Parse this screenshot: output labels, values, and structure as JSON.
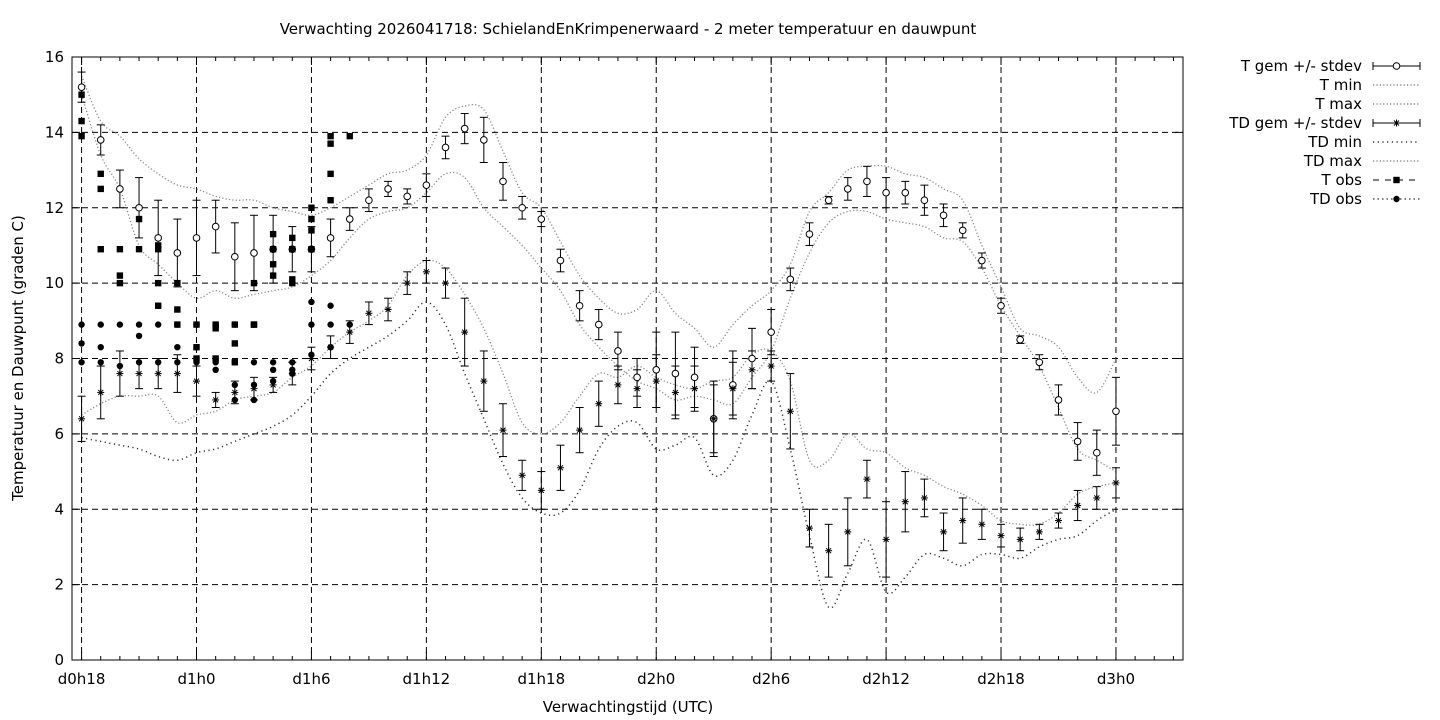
{
  "chart_data": {
    "type": "line",
    "title": "Verwachting 2026041718: SchielandEnKrimpenerwaard - 2 meter temperatuur en dauwpunt",
    "xlabel": "Verwachtingstijd (UTC)",
    "ylabel": "Temperatuur en Dauwpunt (graden C)",
    "xlim": [
      17.5,
      75.5
    ],
    "ylim": [
      0,
      16
    ],
    "x_ticks": [
      {
        "x": 18,
        "label": "d0h18"
      },
      {
        "x": 24,
        "label": "d1h0"
      },
      {
        "x": 30,
        "label": "d1h6"
      },
      {
        "x": 36,
        "label": "d1h12"
      },
      {
        "x": 42,
        "label": "d1h18"
      },
      {
        "x": 48,
        "label": "d2h0"
      },
      {
        "x": 54,
        "label": "d2h6"
      },
      {
        "x": 60,
        "label": "d2h12"
      },
      {
        "x": 66,
        "label": "d2h18"
      },
      {
        "x": 72,
        "label": "d3h0"
      }
    ],
    "y_ticks": [
      0,
      2,
      4,
      6,
      8,
      10,
      12,
      14,
      16
    ],
    "grid": true,
    "legend_position": "outside-right",
    "legend": [
      "T gem +/- stdev",
      "T min",
      "T max",
      "TD gem +/- stdev",
      "TD min",
      "TD max",
      "T obs",
      "TD obs"
    ],
    "x": [
      18,
      19,
      20,
      21,
      22,
      23,
      24,
      25,
      26,
      27,
      28,
      29,
      30,
      31,
      32,
      33,
      34,
      35,
      36,
      37,
      38,
      39,
      40,
      41,
      42,
      43,
      44,
      45,
      46,
      47,
      48,
      49,
      50,
      51,
      52,
      53,
      54,
      55,
      56,
      57,
      58,
      59,
      60,
      61,
      62,
      63,
      64,
      65,
      66,
      67,
      68,
      69,
      70,
      71,
      72
    ],
    "series": [
      {
        "name": "T gem +/- stdev",
        "mean": [
          15.2,
          13.8,
          12.5,
          12.0,
          11.2,
          10.8,
          11.2,
          11.5,
          10.7,
          10.8,
          10.9,
          10.9,
          10.9,
          11.2,
          11.7,
          12.2,
          12.5,
          12.3,
          12.6,
          13.6,
          14.1,
          13.8,
          12.7,
          12.0,
          11.7,
          10.6,
          9.4,
          8.9,
          8.2,
          7.5,
          7.7,
          7.6,
          7.5,
          6.4,
          7.3,
          8.0,
          8.7,
          10.1,
          11.3,
          12.2,
          12.5,
          12.7,
          12.4,
          12.4,
          12.2,
          11.8,
          11.4,
          10.6,
          9.4,
          8.5,
          7.9,
          6.9,
          5.8,
          5.5,
          6.6
        ],
        "stdev": [
          0.4,
          0.4,
          0.5,
          0.8,
          1.0,
          0.9,
          1.0,
          0.7,
          0.9,
          1.0,
          0.9,
          0.6,
          0.6,
          0.5,
          0.3,
          0.3,
          0.2,
          0.2,
          0.3,
          0.3,
          0.4,
          0.6,
          0.5,
          0.3,
          0.2,
          0.3,
          0.4,
          0.4,
          0.5,
          0.5,
          1.0,
          1.1,
          0.8,
          0.9,
          0.9,
          0.8,
          0.6,
          0.3,
          0.3,
          0.1,
          0.3,
          0.4,
          0.4,
          0.3,
          0.4,
          0.3,
          0.2,
          0.2,
          0.2,
          0.1,
          0.2,
          0.4,
          0.5,
          0.6,
          0.9
        ]
      },
      {
        "name": "T min",
        "values": [
          15.0,
          13.4,
          12.5,
          11.0,
          10.5,
          10.0,
          9.6,
          9.8,
          9.6,
          9.7,
          9.8,
          9.9,
          10.2,
          10.6,
          11.2,
          11.7,
          11.9,
          12.0,
          12.4,
          12.9,
          12.8,
          12.0,
          11.5,
          11.0,
          10.4,
          9.8,
          8.9,
          8.3,
          7.8,
          7.4,
          7.2,
          6.9,
          7.0,
          6.9,
          6.8,
          7.5,
          8.2,
          9.6,
          10.8,
          11.6,
          11.9,
          11.9,
          11.7,
          11.6,
          11.5,
          11.2,
          11.1,
          10.4,
          9.4,
          8.6,
          7.8,
          6.7,
          5.6,
          5.3,
          5.0
        ]
      },
      {
        "name": "T max",
        "values": [
          15.5,
          14.3,
          13.9,
          13.3,
          12.9,
          12.6,
          12.5,
          12.3,
          12.2,
          12.2,
          12.0,
          11.9,
          11.8,
          12.0,
          12.3,
          12.6,
          12.9,
          13.0,
          13.4,
          14.4,
          14.7,
          14.6,
          13.5,
          12.4,
          12.0,
          11.1,
          10.2,
          9.6,
          9.2,
          9.3,
          9.8,
          9.2,
          8.8,
          8.3,
          8.9,
          9.4,
          9.8,
          10.5,
          11.9,
          12.4,
          13.0,
          13.1,
          13.1,
          12.9,
          12.8,
          12.5,
          12.2,
          11.0,
          9.9,
          8.8,
          8.6,
          8.3,
          7.5,
          7.1,
          8.0
        ]
      },
      {
        "name": "TD gem +/- stdev",
        "mean": [
          6.4,
          7.1,
          7.6,
          7.6,
          7.6,
          7.6,
          7.4,
          6.9,
          7.1,
          7.2,
          7.3,
          7.6,
          8.0,
          8.3,
          8.7,
          9.2,
          9.3,
          10.0,
          10.3,
          10.0,
          8.7,
          7.4,
          6.1,
          4.9,
          4.5,
          5.1,
          6.1,
          6.8,
          7.3,
          7.2,
          7.4,
          7.1,
          7.2,
          6.4,
          7.2,
          7.7,
          7.8,
          6.6,
          3.5,
          2.9,
          3.4,
          4.8,
          3.2,
          4.2,
          4.3,
          3.4,
          3.7,
          3.6,
          3.3,
          3.2,
          3.4,
          3.7,
          4.1,
          4.3,
          4.7
        ],
        "stdev": [
          0.6,
          0.7,
          0.6,
          0.4,
          0.4,
          0.5,
          0.4,
          0.2,
          0.3,
          0.3,
          0.2,
          0.3,
          0.3,
          0.3,
          0.3,
          0.3,
          0.3,
          0.3,
          0.3,
          0.4,
          0.9,
          0.8,
          0.7,
          0.4,
          0.5,
          0.6,
          0.6,
          0.6,
          0.5,
          0.5,
          0.7,
          0.7,
          0.6,
          1.0,
          0.7,
          0.5,
          0.4,
          1.0,
          0.5,
          0.7,
          0.9,
          0.5,
          1.0,
          0.8,
          0.5,
          0.5,
          0.6,
          0.4,
          0.3,
          0.3,
          0.2,
          0.2,
          0.4,
          0.3,
          0.4
        ]
      },
      {
        "name": "TD min",
        "values": [
          5.9,
          5.8,
          5.7,
          5.6,
          5.4,
          5.3,
          5.5,
          5.6,
          5.8,
          6.0,
          6.2,
          6.5,
          7.0,
          7.6,
          8.0,
          8.3,
          8.6,
          9.0,
          9.5,
          8.9,
          7.6,
          6.4,
          5.2,
          4.3,
          3.9,
          3.9,
          4.5,
          5.6,
          6.2,
          6.3,
          5.6,
          5.7,
          5.9,
          4.9,
          5.3,
          6.5,
          7.4,
          5.6,
          3.3,
          1.4,
          2.3,
          3.2,
          1.8,
          2.2,
          2.8,
          2.7,
          2.5,
          2.8,
          2.8,
          2.7,
          3.0,
          3.2,
          3.3,
          3.7,
          4.0
        ]
      },
      {
        "name": "TD max",
        "values": [
          6.5,
          6.8,
          7.0,
          7.0,
          7.0,
          6.3,
          6.5,
          6.6,
          6.9,
          7.0,
          7.1,
          7.5,
          7.8,
          8.3,
          8.7,
          9.0,
          9.4,
          10.2,
          10.6,
          10.4,
          9.7,
          8.8,
          7.6,
          6.3,
          6.0,
          6.3,
          7.0,
          7.6,
          7.5,
          7.8,
          7.5,
          7.3,
          7.2,
          7.4,
          7.5,
          8.1,
          8.2,
          7.4,
          5.3,
          5.3,
          6.0,
          5.6,
          5.5,
          5.1,
          4.9,
          4.6,
          4.4,
          4.1,
          3.7,
          3.6,
          3.6,
          3.9,
          4.4,
          4.6,
          4.7
        ]
      },
      {
        "name": "T obs",
        "points": [
          [
            18,
            15.0
          ],
          [
            18,
            14.3
          ],
          [
            18,
            13.9
          ],
          [
            19,
            12.9
          ],
          [
            19,
            12.5
          ],
          [
            19,
            10.9
          ],
          [
            20,
            10.9
          ],
          [
            20,
            10.2
          ],
          [
            20,
            10.0
          ],
          [
            21,
            11.7
          ],
          [
            21,
            10.9
          ],
          [
            22,
            11.0
          ],
          [
            22,
            10.9
          ],
          [
            22,
            10.0
          ],
          [
            22,
            9.4
          ],
          [
            23,
            10.0
          ],
          [
            23,
            9.3
          ],
          [
            23,
            8.9
          ],
          [
            24,
            8.9
          ],
          [
            24,
            8.3
          ],
          [
            24,
            8.0
          ],
          [
            25,
            8.9
          ],
          [
            25,
            8.8
          ],
          [
            25,
            8.0
          ],
          [
            26,
            8.9
          ],
          [
            26,
            8.4
          ],
          [
            26,
            7.9
          ],
          [
            27,
            8.9
          ],
          [
            27,
            8.9
          ],
          [
            27,
            10.0
          ],
          [
            28,
            11.3
          ],
          [
            28,
            10.9
          ],
          [
            28,
            10.5
          ],
          [
            28,
            10.2
          ],
          [
            29,
            11.2
          ],
          [
            29,
            10.9
          ],
          [
            29,
            10.1
          ],
          [
            29,
            10.0
          ],
          [
            30,
            12.0
          ],
          [
            30,
            11.7
          ],
          [
            30,
            11.4
          ],
          [
            30,
            10.9
          ],
          [
            31,
            13.9
          ],
          [
            31,
            13.7
          ],
          [
            31,
            12.9
          ],
          [
            31,
            12.2
          ],
          [
            32,
            13.9
          ]
        ]
      },
      {
        "name": "TD obs",
        "points": [
          [
            18,
            8.9
          ],
          [
            18,
            8.4
          ],
          [
            18,
            7.9
          ],
          [
            19,
            8.9
          ],
          [
            19,
            8.3
          ],
          [
            19,
            7.9
          ],
          [
            20,
            8.9
          ],
          [
            20,
            7.8
          ],
          [
            21,
            8.9
          ],
          [
            21,
            8.6
          ],
          [
            21,
            7.9
          ],
          [
            22,
            9.4
          ],
          [
            22,
            8.9
          ],
          [
            22,
            7.9
          ],
          [
            23,
            8.9
          ],
          [
            23,
            8.3
          ],
          [
            23,
            7.9
          ],
          [
            24,
            8.9
          ],
          [
            24,
            8.3
          ],
          [
            24,
            7.9
          ],
          [
            25,
            8.9
          ],
          [
            25,
            7.9
          ],
          [
            25,
            7.7
          ],
          [
            26,
            8.9
          ],
          [
            26,
            7.9
          ],
          [
            26,
            7.3
          ],
          [
            26,
            6.9
          ],
          [
            27,
            8.9
          ],
          [
            27,
            7.9
          ],
          [
            27,
            7.3
          ],
          [
            27,
            6.9
          ],
          [
            28,
            7.9
          ],
          [
            28,
            7.7
          ],
          [
            28,
            7.4
          ],
          [
            29,
            7.9
          ],
          [
            29,
            7.7
          ],
          [
            29,
            7.6
          ],
          [
            30,
            9.5
          ],
          [
            30,
            8.9
          ],
          [
            30,
            8.1
          ],
          [
            31,
            9.4
          ],
          [
            31,
            8.9
          ],
          [
            31,
            8.3
          ],
          [
            32,
            8.9
          ]
        ]
      }
    ]
  }
}
